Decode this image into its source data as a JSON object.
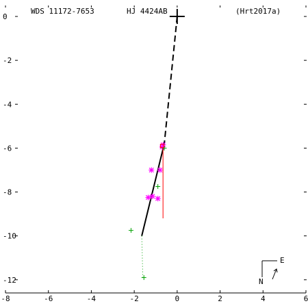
{
  "header": {
    "left": "WDS 11172-7653",
    "center": "HJ 4424AB",
    "right": "(Hrt2017a)"
  },
  "compass": {
    "north": "N",
    "east": "E"
  },
  "chart_data": {
    "type": "scatter",
    "title": "",
    "xlabel": "",
    "ylabel": "",
    "xlim": [
      -8,
      6
    ],
    "ylim": [
      -12.6,
      0.5
    ],
    "xticks": [
      -8,
      -6,
      -4,
      -2,
      0,
      2,
      4,
      6
    ],
    "yticks": [
      0,
      -2,
      -4,
      -6,
      -8,
      -10,
      -12
    ],
    "x_tick_labels": [
      "-8",
      "-6",
      "-4",
      "-2",
      "0",
      "2",
      "4",
      "6"
    ],
    "y_tick_labels": [
      "0",
      "-2",
      "-4",
      "-6",
      "-8",
      "-10",
      "-12"
    ],
    "primary": {
      "x": 0.0,
      "y": 0.0
    },
    "orbit_dashed": [
      [
        0.0,
        0.0
      ],
      [
        -0.6,
        -5.8
      ]
    ],
    "orbit_solid": [
      [
        -0.6,
        -5.8
      ],
      [
        -1.65,
        -10.0
      ]
    ],
    "red_residual": {
      "x": -0.66,
      "y_start": -5.85,
      "y_end": -9.2
    },
    "green_residual": [
      [
        -1.65,
        -10.0
      ],
      [
        -1.6,
        -11.9
      ]
    ],
    "series": [
      {
        "marker": "asterisk",
        "color": "#ff00ff",
        "points": [
          [
            -0.65,
            -5.85
          ],
          [
            -0.7,
            -5.95
          ],
          [
            -1.2,
            -7.0
          ],
          [
            -0.8,
            -7.0
          ],
          [
            -1.35,
            -8.25
          ],
          [
            -1.15,
            -8.2
          ],
          [
            -0.9,
            -8.3
          ]
        ]
      },
      {
        "marker": "plus",
        "color": "#00a000",
        "points": [
          [
            -0.6,
            -6.0
          ],
          [
            -0.9,
            -7.75
          ],
          [
            -2.15,
            -9.75
          ],
          [
            -1.55,
            -11.9
          ]
        ]
      },
      {
        "marker": "square",
        "color": "#ff0000",
        "points": [
          [
            -0.7,
            -5.9
          ]
        ]
      }
    ]
  }
}
